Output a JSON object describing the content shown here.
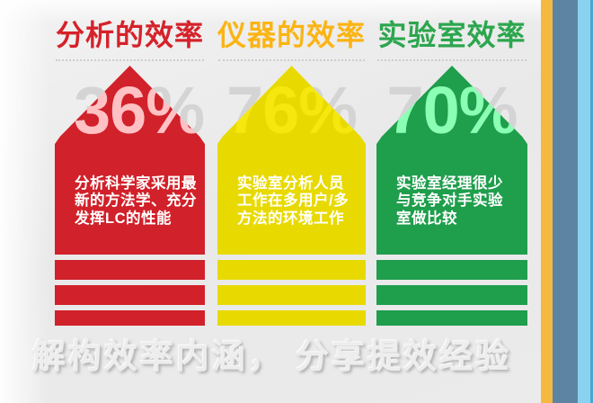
{
  "chart_data": {
    "type": "bar",
    "title": "解构效率内涵， 分享提效经验",
    "categories": [
      "分析的效率",
      "仪器的效率",
      "实验室效率"
    ],
    "values": [
      36,
      76,
      70
    ],
    "value_unit": "%",
    "annotations": [
      "分析科学家采用最新的方法学、充分发挥LC的性能",
      "实验室分析人员工作在多用户/多方法的环境工作",
      "实验室经理很少与竞争对手实验室做比较"
    ],
    "layout_hint": "three upward arrow pictograms with watermark percentages"
  },
  "columns": [
    {
      "title": "分析的效率",
      "title_color": "#d5222a",
      "arrow_color": "#d1212a",
      "percent": "36%",
      "description": "分析科学家采用最\n新的方法学、充分\n发挥LC的性能"
    },
    {
      "title": "仪器的效率",
      "title_color": "#fbb414",
      "arrow_color": "#e8da00",
      "percent": "76%",
      "description": "实验室分析人员\n工作在多用户/多\n方法的环境工作"
    },
    {
      "title": "实验室效率",
      "title_color": "#2ca64e",
      "arrow_color": "#1f9e4c",
      "percent": "70%",
      "description": "实验室经理很少\n与竞争对手实验\n室做比较"
    }
  ],
  "footer": {
    "headline": "解构效率内涵， 分享提效经验"
  },
  "decor": {
    "watermark_color": "#d4d4d4",
    "side_stripes": [
      {
        "name": "orange",
        "color": "#f5b942"
      },
      {
        "name": "steel-blue",
        "color": "#5d85a3"
      },
      {
        "name": "sky-blue",
        "color": "#8bd1f0"
      },
      {
        "name": "deep-blue",
        "color": "#49a7d4"
      }
    ]
  }
}
